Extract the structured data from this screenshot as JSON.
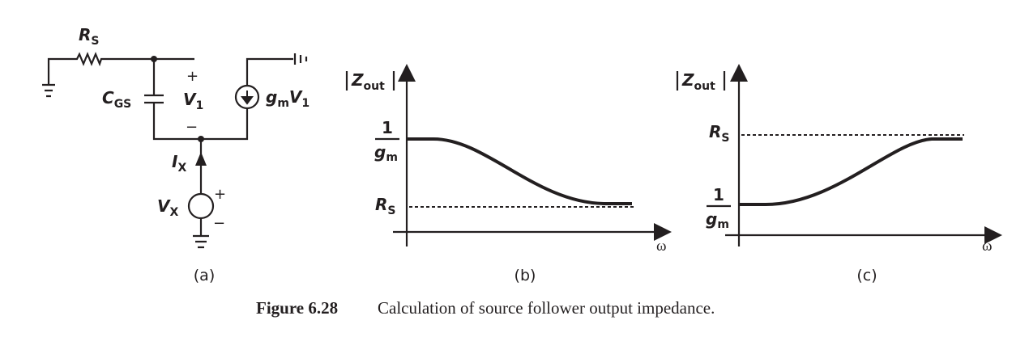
{
  "circuit": {
    "label": "(a)",
    "rs": [
      "R",
      "S"
    ],
    "cgs": [
      "C",
      "GS"
    ],
    "v1": [
      "V",
      "1"
    ],
    "v1_plus": "+",
    "v1_minus": "−",
    "gm_v1": [
      "g",
      "m",
      "V",
      "1"
    ],
    "ix": [
      "I",
      "X"
    ],
    "vx": [
      "V",
      "X"
    ],
    "vx_plus": "+",
    "vx_minus": "−"
  },
  "plot_b": {
    "label": "(b)",
    "y_axis": [
      "Z",
      "out"
    ],
    "level_high": [
      "1",
      "g",
      "m"
    ],
    "level_low": [
      "R",
      "S"
    ],
    "x_axis": "ω"
  },
  "plot_c": {
    "label": "(c)",
    "y_axis": [
      "Z",
      "out"
    ],
    "level_high": [
      "R",
      "S"
    ],
    "level_low": [
      "1",
      "g",
      "m"
    ],
    "x_axis": "ω"
  },
  "caption": {
    "number": "Figure 6.28",
    "text": "Calculation of source follower output impedance."
  }
}
